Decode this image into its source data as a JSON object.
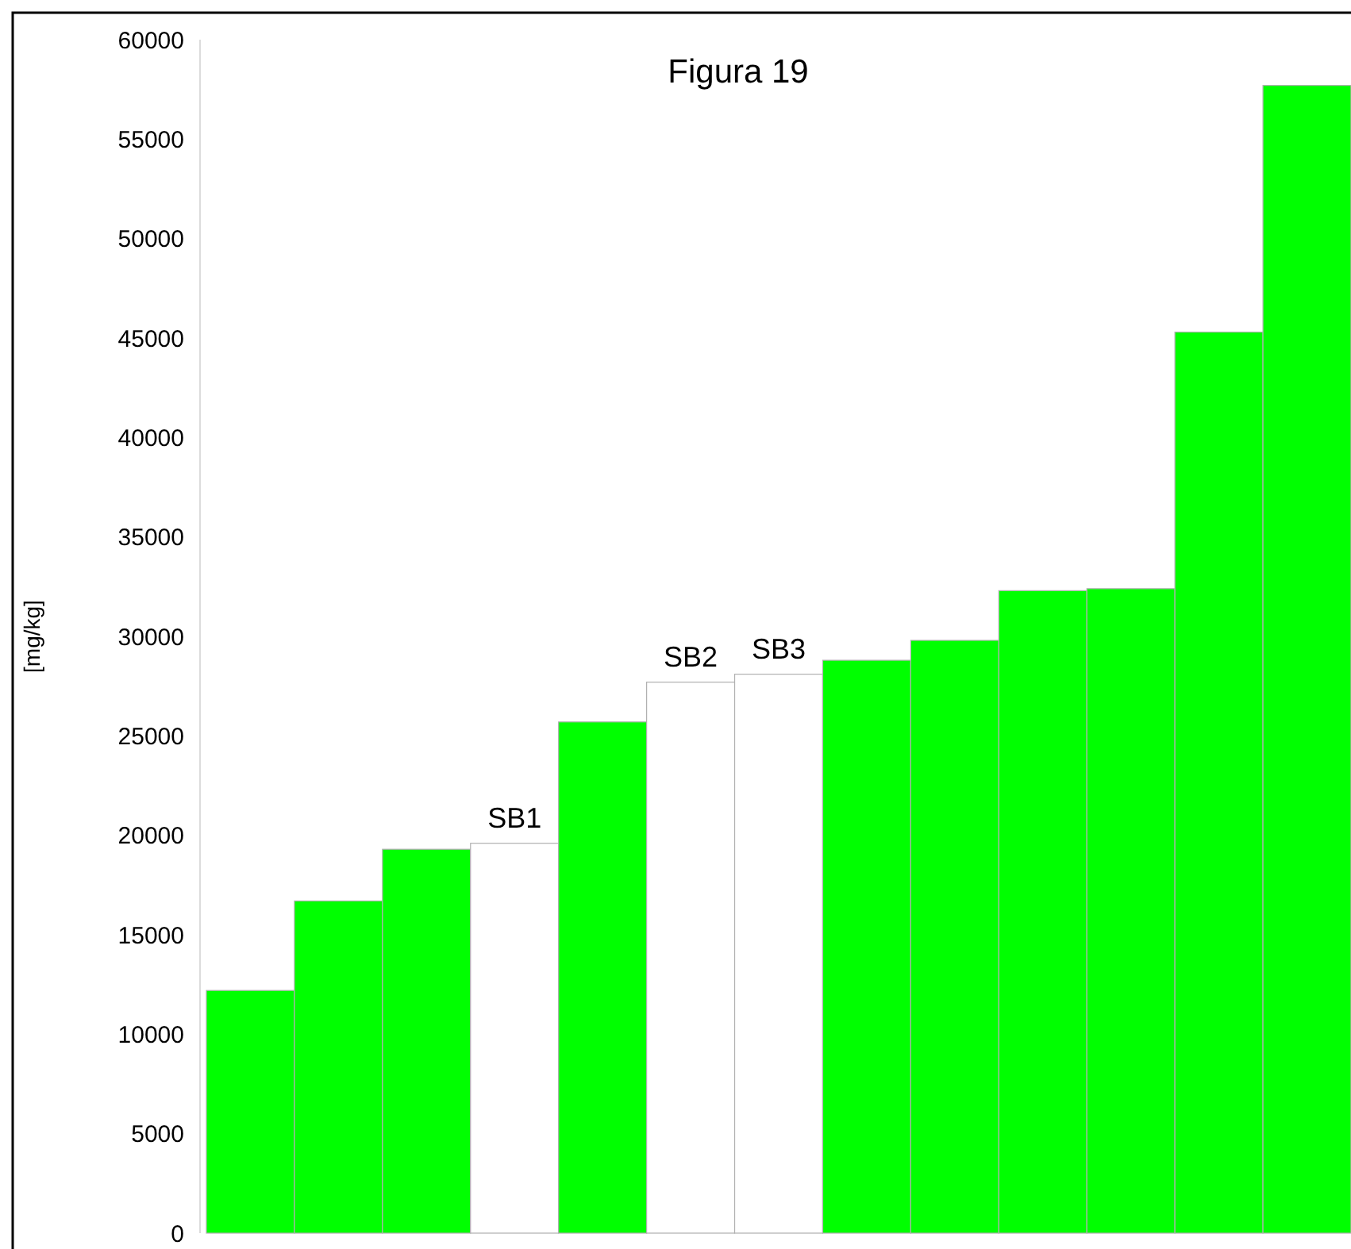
{
  "chart_data": {
    "type": "bar",
    "title": "Figura 19",
    "ylabel": "[mg/kg]",
    "categories": [
      null,
      null,
      null,
      "SB1",
      null,
      "SB2",
      "SB3",
      null,
      null,
      null,
      null,
      null,
      null
    ],
    "values": [
      12200,
      16700,
      19300,
      19600,
      25700,
      27700,
      28100,
      28800,
      29800,
      32300,
      32400,
      45300,
      57700
    ],
    "colors": [
      "#00ff00",
      "#00ff00",
      "#00ff00",
      "#ffffff",
      "#00ff00",
      "#ffffff",
      "#ffffff",
      "#00ff00",
      "#00ff00",
      "#00ff00",
      "#00ff00",
      "#00ff00",
      "#00ff00"
    ],
    "ylim": [
      0,
      60000
    ],
    "yticks": [
      0,
      5000,
      10000,
      15000,
      20000,
      25000,
      30000,
      35000,
      40000,
      45000,
      50000,
      55000,
      60000
    ],
    "grid": false
  }
}
